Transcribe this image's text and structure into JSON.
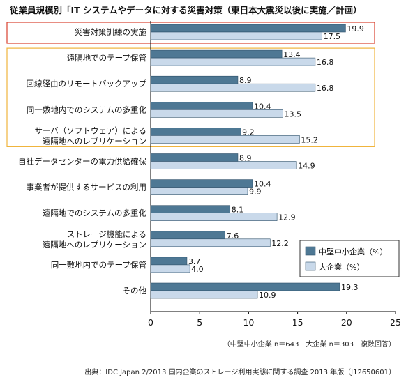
{
  "chart_data": {
    "type": "bar",
    "orientation": "horizontal",
    "title": "従業員規模別「IT システムやデータに対する災害対策（東日本大震災以後に実施／計画）",
    "categories": [
      [
        "災害対策訓練の実施"
      ],
      [
        "遠隔地でのテープ保管"
      ],
      [
        "回線経由のリモートバックアップ"
      ],
      [
        "同一敷地内でのシステムの多重化"
      ],
      [
        "サーバ（ソフトウェア）による",
        "遠隔地へのレプリケーション"
      ],
      [
        "自社データセンターの電力供給確保"
      ],
      [
        "事業者が提供するサービスの利用"
      ],
      [
        "遠隔地でのシステムの多重化"
      ],
      [
        "ストレージ機能による",
        "遠隔地へのレプリケーション"
      ],
      [
        "同一敷地内でのテープ保管"
      ],
      [
        "その他"
      ]
    ],
    "series": [
      {
        "name": "中堅中小企業（%）",
        "color": "#4e7894",
        "values": [
          19.9,
          13.4,
          8.9,
          10.4,
          9.2,
          8.9,
          10.4,
          8.1,
          7.6,
          3.7,
          19.3
        ]
      },
      {
        "name": "大企業（%）",
        "color": "#c9d9ea",
        "values": [
          17.5,
          16.8,
          16.8,
          13.5,
          15.2,
          14.9,
          9.9,
          12.9,
          12.2,
          4.0,
          10.9
        ]
      }
    ],
    "xlim": [
      0,
      25
    ],
    "xticks": [
      "0",
      "5",
      "10",
      "15",
      "20",
      "25"
    ],
    "grid": false,
    "legend": "bottom-right",
    "highlight_boxes": [
      {
        "color": "#d9412f",
        "categories": [
          0
        ]
      },
      {
        "color": "#f0b43c",
        "categories": [
          1,
          2,
          3,
          4
        ]
      }
    ]
  },
  "note": "（中堅中小企業 n＝643　大企業 n＝303　複数回答）",
  "source": "出典：IDC Japan 2/2013 国内企業のストレージ利用実態に関する調査 2013 年版（J12650601）"
}
